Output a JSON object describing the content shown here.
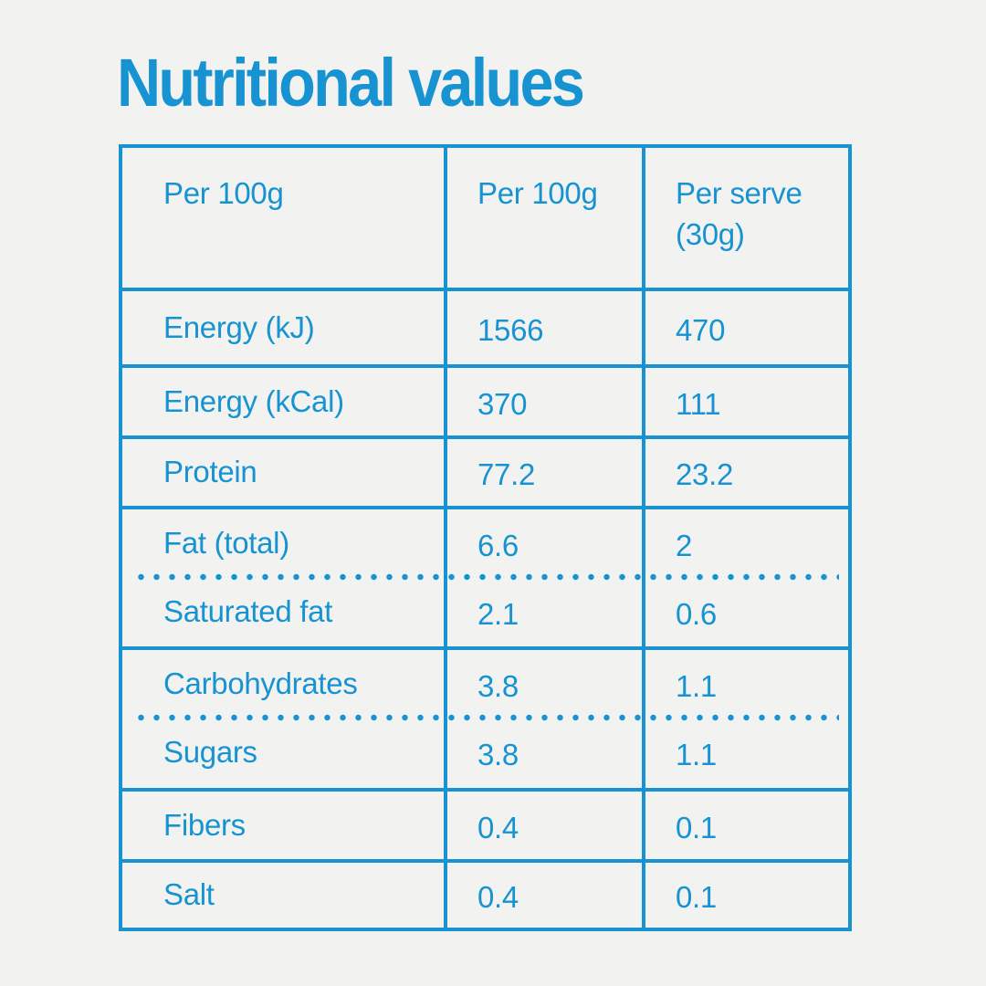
{
  "page": {
    "background_color": "#f2f3f1",
    "accent_color": "#1793d2"
  },
  "title": "Nutritional values",
  "table": {
    "headers": [
      "Per 100g",
      "Per 100g",
      "Per serve (30g)"
    ],
    "rows": [
      {
        "label": "Energy (kJ)",
        "per_100g": "1566",
        "per_serve": "470",
        "separator_above": "solid"
      },
      {
        "label": "Energy (kCal)",
        "per_100g": "370",
        "per_serve": "111",
        "separator_above": "solid"
      },
      {
        "label": "Protein",
        "per_100g": "77.2",
        "per_serve": "23.2",
        "separator_above": "solid"
      },
      {
        "label": "Fat (total)",
        "per_100g": "6.6",
        "per_serve": "2",
        "separator_above": "solid"
      },
      {
        "label": "Saturated fat",
        "per_100g": "2.1",
        "per_serve": "0.6",
        "separator_above": "dotted"
      },
      {
        "label": "Carbohydrates",
        "per_100g": "3.8",
        "per_serve": "1.1",
        "separator_above": "solid"
      },
      {
        "label": "Sugars",
        "per_100g": "3.8",
        "per_serve": "1.1",
        "separator_above": "dotted"
      },
      {
        "label": "Fibers",
        "per_100g": "0.4",
        "per_serve": "0.1",
        "separator_above": "solid"
      },
      {
        "label": "Salt",
        "per_100g": "0.4",
        "per_serve": "0.1",
        "separator_above": "solid"
      }
    ]
  }
}
